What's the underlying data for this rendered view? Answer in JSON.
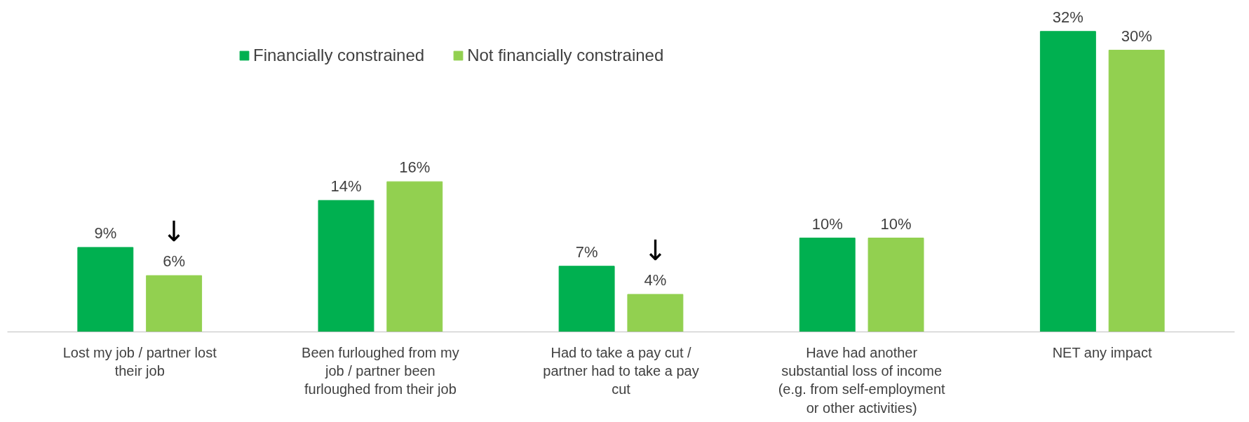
{
  "chart_data": {
    "type": "bar",
    "categories": [
      "Lost my job / partner lost their job",
      "Been furloughed from my job / partner been furloughed from their job",
      "Had to take a pay cut / partner had to take a pay cut",
      "Have had another substantial loss of income (e.g. from self-employment or other activities)",
      "NET any impact"
    ],
    "series": [
      {
        "name": "Financially constrained",
        "color": "#00b050",
        "values": [
          9,
          14,
          7,
          10,
          32
        ],
        "value_labels": [
          "9%",
          "14%",
          "7%",
          "10%",
          "32%"
        ]
      },
      {
        "name": "Not financially constrained",
        "color": "#92d050",
        "values": [
          6,
          16,
          4,
          10,
          30
        ],
        "value_labels": [
          "6%",
          "16%",
          "4%",
          "10%",
          "30%"
        ]
      }
    ],
    "annotations": [
      "↓",
      "↓"
    ],
    "legend": "top",
    "grid": false
  }
}
